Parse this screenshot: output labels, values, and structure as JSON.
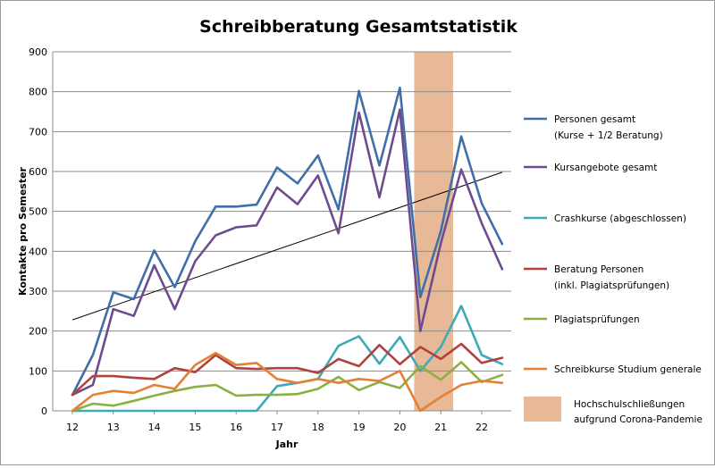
{
  "chart_data": {
    "type": "line",
    "title": "Schreibberatung Gesamtstatistik",
    "xlabel": "Jahr",
    "ylabel": "Kontakte pro Semester",
    "xlim": [
      12,
      22.5
    ],
    "ylim": [
      0,
      900
    ],
    "x_ticks": [
      "12",
      "13",
      "14",
      "15",
      "16",
      "17",
      "18",
      "19",
      "20",
      "21",
      "22"
    ],
    "y_ticks": [
      "0",
      "100",
      "200",
      "300",
      "400",
      "500",
      "600",
      "700",
      "800",
      "900"
    ],
    "grid": "horizontal",
    "legend_position": "right",
    "x": [
      12,
      12.5,
      13,
      13.5,
      14,
      14.5,
      15,
      15.5,
      16,
      16.5,
      17,
      17.5,
      18,
      18.5,
      19,
      19.5,
      20,
      20.5,
      21,
      21.5,
      22,
      22.5
    ],
    "series": [
      {
        "name": "Personen gesamt",
        "name_line2": "(Kurse + 1/2 Beratung)",
        "color": "#3f6fa9",
        "values": [
          40,
          140,
          297,
          280,
          402,
          310,
          425,
          512,
          512,
          517,
          610,
          570,
          640,
          505,
          802,
          615,
          810,
          285,
          450,
          688,
          520,
          418
        ]
      },
      {
        "name": "Kursangebote gesamt",
        "color": "#6e4b8f",
        "values": [
          40,
          65,
          255,
          238,
          365,
          255,
          375,
          440,
          460,
          465,
          560,
          518,
          590,
          445,
          748,
          535,
          755,
          200,
          420,
          605,
          470,
          355
        ]
      },
      {
        "name": "Crashkurse (abgeschlossen)",
        "color": "#3ea9b7",
        "values": [
          0,
          0,
          0,
          0,
          0,
          0,
          0,
          0,
          0,
          0,
          62,
          70,
          80,
          163,
          187,
          118,
          185,
          100,
          160,
          263,
          140,
          117
        ]
      },
      {
        "name": "Beratung Personen",
        "name_line2": "(inkl. Plagiatsprüfungen)",
        "color": "#b1413e",
        "values": [
          40,
          87,
          87,
          83,
          80,
          107,
          97,
          140,
          107,
          105,
          107,
          107,
          95,
          130,
          112,
          165,
          117,
          160,
          130,
          168,
          120,
          133
        ]
      },
      {
        "name": "Plagiatsprüfungen",
        "color": "#8bb042",
        "values": [
          0,
          18,
          13,
          25,
          38,
          50,
          60,
          65,
          38,
          40,
          40,
          42,
          55,
          85,
          52,
          72,
          57,
          112,
          78,
          122,
          72,
          90
        ]
      },
      {
        "name": "Schreibkurse Studium generale",
        "color": "#e57f33",
        "values": [
          0,
          40,
          50,
          45,
          65,
          55,
          115,
          145,
          115,
          120,
          80,
          70,
          80,
          70,
          80,
          75,
          100,
          0,
          35,
          65,
          75,
          70
        ]
      }
    ],
    "trendline": {
      "color": "#000000",
      "from": [
        12,
        228
      ],
      "to": [
        22.5,
        598
      ]
    },
    "highlight_band": {
      "x_range": [
        20.35,
        21.3
      ],
      "color": "#e8b996",
      "label_line1": "Hochschulschließungen",
      "label_line2": "aufgrund Corona-Pandemie"
    }
  }
}
